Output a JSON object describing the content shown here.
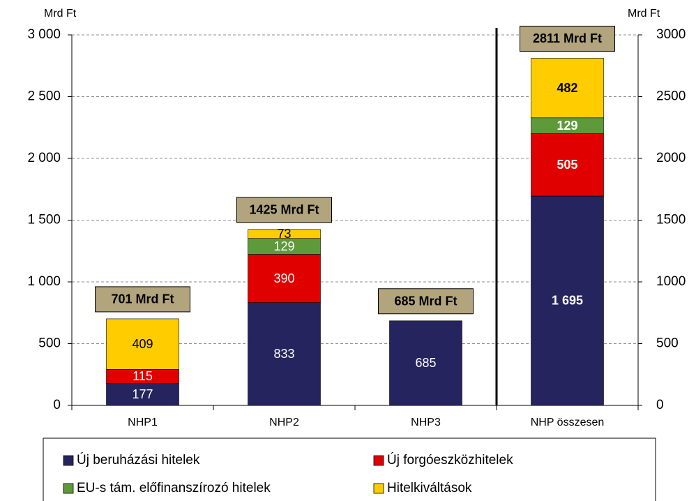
{
  "chart_data": {
    "type": "stacked_bar",
    "categories": [
      "NHP1",
      "NHP2",
      "NHP3",
      "NHP összesen"
    ],
    "series": [
      {
        "name": "Új beruházási hitelek",
        "color": "#25245e",
        "label_color": "#ffffff",
        "values": [
          177,
          833,
          685,
          1695
        ],
        "value_labels": [
          "177",
          "833",
          "685",
          "1 695"
        ]
      },
      {
        "name": "Új forgóeszközhitelek",
        "color": "#e00000",
        "label_color": "#ffffff",
        "values": [
          115,
          390,
          null,
          505
        ]
      },
      {
        "name": "EU-s tám. előfinanszírozó hitelek",
        "color": "#5e9a3a",
        "label_color": "#ffffff",
        "values": [
          null,
          129,
          null,
          129
        ]
      },
      {
        "name": "Hitelkiváltások",
        "color": "#ffcc00",
        "label_color": "#000000",
        "values": [
          409,
          73,
          null,
          482
        ]
      }
    ],
    "totals": {
      "values": [
        701,
        1425,
        685,
        2811
      ],
      "value_labels": [
        "701 Mrd Ft",
        "1425 Mrd Ft",
        "685 Mrd Ft",
        "2811 Mrd Ft"
      ],
      "color": "#b2a47c"
    },
    "y_label": "Mrd Ft",
    "y2_label": "Mrd Ft",
    "ylim": [
      0,
      3000
    ],
    "yticks": [
      {
        "value": 0,
        "label": "0"
      },
      {
        "value": 500,
        "label": "500"
      },
      {
        "value": 1000,
        "label": "1 000"
      },
      {
        "value": 1500,
        "label": "1 500"
      },
      {
        "value": 2000,
        "label": "2 000"
      },
      {
        "value": 2500,
        "label": "2 500"
      },
      {
        "value": 3000,
        "label": "3 000"
      }
    ],
    "y2lim": [
      0,
      3000
    ],
    "y2ticks": [
      0,
      500,
      1000,
      1500,
      2000,
      2500,
      3000
    ],
    "grid": true
  }
}
